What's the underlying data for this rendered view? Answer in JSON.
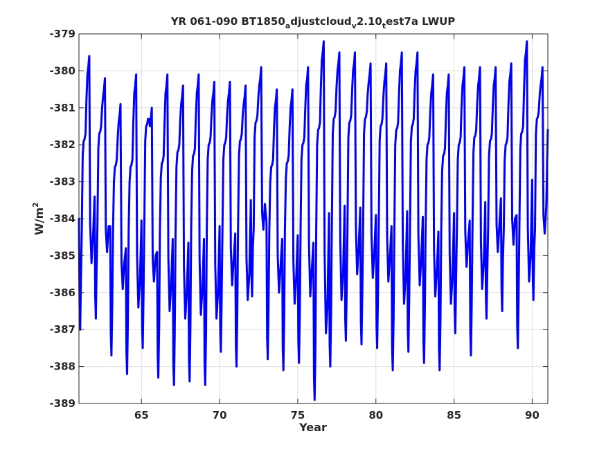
{
  "chart_data": {
    "type": "line",
    "title_parts": [
      {
        "text": "YR 061-090 BT1850",
        "sub": false
      },
      {
        "text": "a",
        "sub": true
      },
      {
        "text": "djustcloud",
        "sub": false
      },
      {
        "text": "v",
        "sub": true
      },
      {
        "text": "2.10",
        "sub": false
      },
      {
        "text": "t",
        "sub": true
      },
      {
        "text": "est7a LWUP",
        "sub": false
      }
    ],
    "xlabel": "Year",
    "ylabel_base": "W/m",
    "ylabel_sup": "2",
    "xlim": [
      61,
      91
    ],
    "ylim": [
      -389,
      -379
    ],
    "xticks": [
      65,
      70,
      75,
      80,
      85,
      90
    ],
    "xtick_labels": [
      "65",
      "70",
      "75",
      "80",
      "85",
      "90"
    ],
    "yticks": [
      -389,
      -388,
      -387,
      -386,
      -385,
      -384,
      -383,
      -382,
      -381,
      -380,
      -379
    ],
    "ytick_labels": [
      "-389",
      "-388",
      "-387",
      "-386",
      "-385",
      "-384",
      "-383",
      "-382",
      "-381",
      "-380",
      "-379"
    ],
    "grid": true,
    "series": [
      {
        "color": "#0000ff",
        "years": [
          61,
          62,
          63,
          64,
          65,
          66,
          67,
          68,
          69,
          70,
          71,
          72,
          73,
          74,
          75,
          76,
          77,
          78,
          79,
          80,
          81,
          82,
          83,
          84,
          85,
          86,
          87,
          88,
          89,
          90
        ],
        "annual_max": [
          -380.1,
          -380.7,
          -381.4,
          -380.6,
          -381.5,
          -380.6,
          -380.9,
          -380.6,
          -380.8,
          -380.8,
          -380.9,
          -380.4,
          -381.0,
          -381.0,
          -380.4,
          -379.7,
          -380.0,
          -380.0,
          -380.3,
          -380.3,
          -380.0,
          -380.0,
          -380.6,
          -380.6,
          -380.4,
          -380.4,
          -380.4,
          -380.3,
          -379.7,
          -380.4
        ],
        "annual_min": [
          -387.0,
          -386.7,
          -387.7,
          -388.2,
          -387.5,
          -388.3,
          -388.5,
          -388.4,
          -388.5,
          -387.6,
          -388.0,
          -386.1,
          -387.8,
          -388.1,
          -387.9,
          -388.9,
          -388.0,
          -387.3,
          -387.4,
          -387.5,
          -388.1,
          -387.6,
          -387.9,
          -388.1,
          -387.1,
          -387.7,
          -386.7,
          -386.5,
          -387.5,
          -386.2
        ],
        "annual_plateau": [
          -381.9,
          -381.7,
          -382.6,
          -382.6,
          -381.5,
          -382.5,
          -382.2,
          -382.3,
          -382.0,
          -382.0,
          -381.9,
          -381.4,
          -382.6,
          -382.5,
          -382.0,
          -381.6,
          -381.3,
          -381.4,
          -381.3,
          -381.5,
          -381.6,
          -381.5,
          -382.0,
          -382.3,
          -382.0,
          -381.8,
          -381.9,
          -382.0,
          -381.7,
          -381.3
        ]
      }
    ]
  }
}
